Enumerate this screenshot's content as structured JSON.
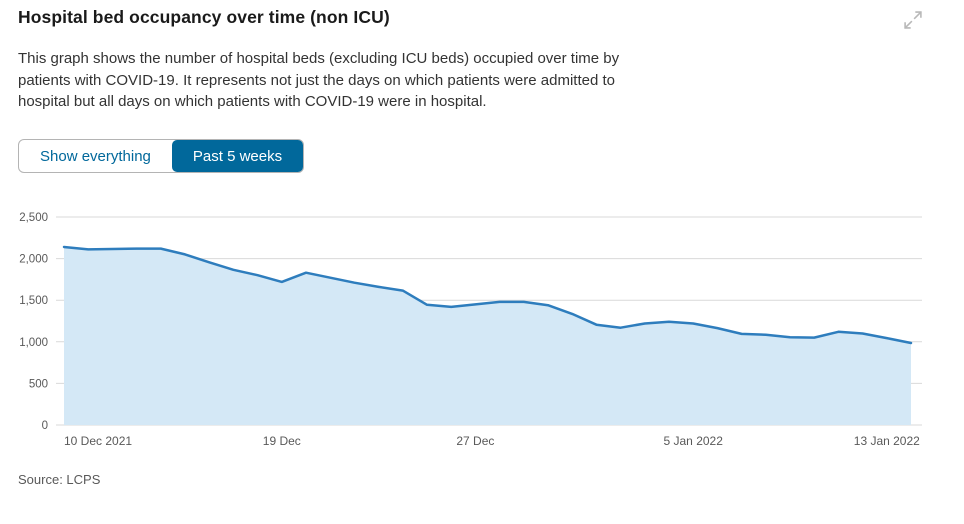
{
  "header": {
    "title": "Hospital bed occupancy over time (non ICU)",
    "expand_icon": "expand-diagonal-arrows-icon"
  },
  "description": "This graph shows the number of hospital beds (excluding ICU beds) occupied over time by patients with COVID-19. It represents not just the days on which patients were admitted to hospital but all days on which patients with COVID-19 were in hospital.",
  "controls": {
    "buttons": [
      {
        "label": "Show everything",
        "active": false
      },
      {
        "label": "Past 5 weeks",
        "active": true
      }
    ]
  },
  "source_label": "Source: LCPS",
  "colors": {
    "accent": "#01689b",
    "line": "#2e7dbd",
    "area_fill": "#d4e8f6",
    "grid": "#d9d9d9",
    "axis_text": "#595959",
    "icon": "#b8b8b8",
    "title_text": "#1a1a1a",
    "body_text": "#333333"
  },
  "chart_data": {
    "type": "area",
    "title": "Hospital bed occupancy over time (non ICU)",
    "xlabel": "",
    "ylabel": "",
    "ylim": [
      0,
      2500
    ],
    "grid": true,
    "legend": false,
    "x": [
      "10 Dec 2021",
      "11 Dec 2021",
      "12 Dec 2021",
      "13 Dec 2021",
      "14 Dec 2021",
      "15 Dec 2021",
      "16 Dec 2021",
      "17 Dec 2021",
      "18 Dec 2021",
      "19 Dec 2021",
      "20 Dec 2021",
      "21 Dec 2021",
      "22 Dec 2021",
      "23 Dec 2021",
      "24 Dec 2021",
      "25 Dec 2021",
      "26 Dec 2021",
      "27 Dec 2021",
      "28 Dec 2021",
      "29 Dec 2021",
      "30 Dec 2021",
      "31 Dec 2021",
      "1 Jan 2022",
      "2 Jan 2022",
      "3 Jan 2022",
      "4 Jan 2022",
      "5 Jan 2022",
      "6 Jan 2022",
      "7 Jan 2022",
      "8 Jan 2022",
      "9 Jan 2022",
      "10 Jan 2022",
      "11 Jan 2022",
      "12 Jan 2022",
      "13 Jan 2022",
      "14 Jan 2022"
    ],
    "values": [
      2140,
      2110,
      2115,
      2120,
      2120,
      2050,
      1955,
      1865,
      1800,
      1720,
      1830,
      1770,
      1710,
      1660,
      1615,
      1445,
      1420,
      1450,
      1480,
      1480,
      1440,
      1335,
      1205,
      1170,
      1220,
      1240,
      1220,
      1165,
      1095,
      1085,
      1055,
      1050,
      1120,
      1100,
      1045,
      985
    ],
    "yticks": [
      0,
      500,
      1000,
      1500,
      2000,
      2500
    ],
    "ytick_labels": [
      "0",
      "500",
      "1,000",
      "1,500",
      "2,000",
      "2,500"
    ],
    "xticks": [
      {
        "index": 0,
        "label": "10 Dec 2021"
      },
      {
        "index": 9,
        "label": "19 Dec"
      },
      {
        "index": 17,
        "label": "27 Dec"
      },
      {
        "index": 26,
        "label": "5 Jan 2022"
      },
      {
        "index": 34,
        "label": "13 Jan 2022"
      }
    ]
  }
}
